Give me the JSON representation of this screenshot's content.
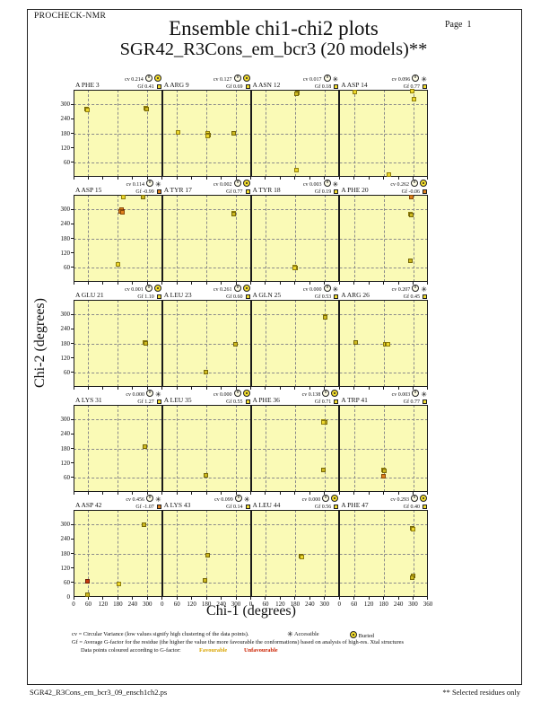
{
  "page": {
    "app": "PROCHECK-NMR",
    "page_label": "Page  1",
    "title": "Ensemble chi1-chi2 plots",
    "subtitle": "SGR42_R3Cons_em_bcr3 (20 models)**",
    "footer_left": "SGR42_R3Cons_em_bcr3_09_ensch1ch2.ps",
    "footer_right": "** Selected residues only"
  },
  "axes": {
    "xlabel": "Chi-1 (degrees)",
    "ylabel": "Chi-2 (degrees)",
    "x_ticks": [
      0,
      60,
      120,
      180,
      240,
      300
    ],
    "x_end_tick": 360,
    "y_ticks": [
      300,
      240,
      180,
      120,
      60
    ],
    "y_zero": "0"
  },
  "icons": {
    "accessible_glyph": "✳"
  },
  "labels": {
    "cv_prefix": "cv",
    "gf_prefix": "Gf"
  },
  "legend": {
    "cv_line": "cv = Circular Variance (low values signify high clustering of the data points).",
    "accessible_label": "Accessible",
    "buried_label": "Buried",
    "gf_line": "Gf = Average G-factor for the residue (the higher the value the more favourable the conformations)  based on analysis of high-res. Xtal structures",
    "colour_line": "Data points coloured according to G-factor:",
    "favourable_label": "Favourable",
    "unfavourable_label": "Unfavourable"
  },
  "colors": {
    "plot_bg": "#FAFAB6",
    "frame": "#1A1A1A",
    "grid": "#8A8A8A",
    "point_yellow": "#EDD72B",
    "point_yellow_border": "#8F7E0C",
    "point_dark": "#CDB91F",
    "point_dark_border": "#776808",
    "point_orange": "#E0801C",
    "point_orange_border": "#8A4A08",
    "point_red": "#C63A10",
    "point_red_border": "#701D05",
    "favourable_swatch": "#F2DC2E",
    "unfavourable_swatch": "#E0801C",
    "favourable_text": "#D9A400",
    "unfavourable_text": "#CC2200"
  },
  "chart_data": {
    "type": "scatter",
    "grid": true,
    "x_range": [
      0,
      360
    ],
    "y_range": [
      0,
      360
    ],
    "gridline_degrees": [
      60,
      180,
      300
    ],
    "models_per_residue": 20,
    "residues": [
      {
        "name": "A PHE 3",
        "cv": "0.214",
        "gf": "0.41",
        "access": "buried",
        "gf_class": "fav",
        "points": [
          [
            54,
            279,
            "d"
          ],
          [
            57,
            276,
            "y"
          ],
          [
            293,
            284,
            "y"
          ],
          [
            296,
            281,
            "d"
          ]
        ]
      },
      {
        "name": "A ARG 9",
        "cv": "0.127",
        "gf": "0.69",
        "access": "buried",
        "gf_class": "fav",
        "points": [
          [
            66,
            185,
            "y"
          ],
          [
            184,
            179,
            "y"
          ],
          [
            188,
            174,
            "d"
          ],
          [
            186,
            169,
            "y"
          ],
          [
            290,
            179,
            "d"
          ]
        ]
      },
      {
        "name": "A ASN 12",
        "cv": "0.017",
        "gf": "0.18",
        "access": "accessible",
        "gf_class": "fav",
        "points": [
          [
            189,
            347,
            "y"
          ],
          [
            187,
            342,
            "d"
          ],
          [
            186,
            26,
            "y"
          ]
        ]
      },
      {
        "name": "A ASP 14",
        "cv": "0.096",
        "gf": "0.77",
        "access": "accessible",
        "gf_class": "fav",
        "points": [
          [
            62,
            351,
            "y"
          ],
          [
            297,
            354,
            "y"
          ],
          [
            305,
            320,
            "y"
          ],
          [
            203,
            8,
            "y"
          ]
        ]
      },
      {
        "name": "A ASP 15",
        "cv": "0.114",
        "gf": "-0.99",
        "access": "accessible",
        "gf_class": "unfav",
        "points": [
          [
            202,
            352,
            "y"
          ],
          [
            281,
            349,
            "d"
          ],
          [
            195,
            297,
            "o"
          ],
          [
            199,
            293,
            "r"
          ],
          [
            192,
            291,
            "o"
          ],
          [
            198,
            288,
            "o"
          ],
          [
            181,
            71,
            "y"
          ]
        ]
      },
      {
        "name": "A TYR 17",
        "cv": "0.002",
        "gf": "0.77",
        "access": "buried",
        "gf_class": "fav",
        "points": [
          [
            289,
            283,
            "y"
          ],
          [
            292,
            279,
            "d"
          ]
        ]
      },
      {
        "name": "A TYR 18",
        "cv": "0.003",
        "gf": "0.19",
        "access": "accessible",
        "gf_class": "fav",
        "points": [
          [
            179,
            63,
            "y"
          ],
          [
            182,
            59,
            "d"
          ],
          [
            178,
            56,
            "y"
          ]
        ]
      },
      {
        "name": "A PHE 20",
        "cv": "0.262",
        "gf": "-0.06",
        "access": "buried",
        "gf_class": "unfav",
        "points": [
          [
            293,
            352,
            "o"
          ],
          [
            289,
            281,
            "y"
          ],
          [
            291,
            276,
            "d"
          ],
          [
            289,
            89,
            "d"
          ]
        ]
      },
      {
        "name": "A GLU 21",
        "cv": "0.001",
        "gf": "1.10",
        "access": "buried",
        "gf_class": "fav",
        "points": [
          [
            290,
            184,
            "y"
          ],
          [
            293,
            180,
            "d"
          ]
        ]
      },
      {
        "name": "A LEU 23",
        "cv": "0.261",
        "gf": "0.60",
        "access": "buried",
        "gf_class": "fav",
        "points": [
          [
            179,
            61,
            "d"
          ],
          [
            298,
            177,
            "d"
          ]
        ]
      },
      {
        "name": "A GLN 25",
        "cv": "0.000",
        "gf": "0.53",
        "access": "accessible",
        "gf_class": "fav",
        "points": [
          [
            302,
            293,
            "y"
          ],
          [
            304,
            289,
            "d"
          ]
        ]
      },
      {
        "name": "A ARG 26",
        "cv": "0.207",
        "gf": "0.45",
        "access": "accessible",
        "gf_class": "fav",
        "points": [
          [
            67,
            182,
            "d"
          ],
          [
            187,
            177,
            "y"
          ],
          [
            193,
            176,
            "d"
          ],
          [
            198,
            177,
            "y"
          ]
        ]
      },
      {
        "name": "A LYS 31",
        "cv": "0.000",
        "gf": "1.27",
        "access": "accessible",
        "gf_class": "fav",
        "points": [
          [
            290,
            186,
            "d"
          ]
        ]
      },
      {
        "name": "A LEU 35",
        "cv": "0.000",
        "gf": "0.55",
        "access": "buried",
        "gf_class": "fav",
        "points": [
          [
            176,
            69,
            "d"
          ]
        ]
      },
      {
        "name": "A PHE 36",
        "cv": "0.138",
        "gf": "0.71",
        "access": "buried",
        "gf_class": "fav",
        "points": [
          [
            297,
            292,
            "y"
          ],
          [
            301,
            287,
            "d"
          ],
          [
            295,
            286,
            "y"
          ],
          [
            294,
            90,
            "d"
          ]
        ]
      },
      {
        "name": "A TRP 41",
        "cv": "0.003",
        "gf": "0.77",
        "access": "accessible",
        "gf_class": "fav",
        "points": [
          [
            180,
            91,
            "y"
          ],
          [
            182,
            86,
            "d"
          ],
          [
            181,
            65,
            "o"
          ]
        ]
      },
      {
        "name": "A ASP 42",
        "cv": "0.456",
        "gf": "-1.07",
        "access": "accessible",
        "gf_class": "unfav",
        "points": [
          [
            286,
            297,
            "d"
          ],
          [
            55,
            66,
            "r"
          ],
          [
            184,
            54,
            "y"
          ],
          [
            55,
            10,
            "d"
          ]
        ]
      },
      {
        "name": "A LYS 43",
        "cv": "0.099",
        "gf": "0.14",
        "access": "accessible",
        "gf_class": "fav",
        "points": [
          [
            185,
            174,
            "d"
          ],
          [
            175,
            68,
            "d"
          ]
        ]
      },
      {
        "name": "A LEU 44",
        "cv": "0.000",
        "gf": "0.56",
        "access": "buried",
        "gf_class": "fav",
        "points": [
          [
            204,
            170,
            "d"
          ],
          [
            207,
            166,
            "y"
          ]
        ]
      },
      {
        "name": "A PHE 47",
        "cv": "0.293",
        "gf": "0.40",
        "access": "buried",
        "gf_class": "fav",
        "points": [
          [
            297,
            284,
            "d"
          ],
          [
            299,
            279,
            "y"
          ],
          [
            299,
            88,
            "d"
          ],
          [
            298,
            81,
            "d"
          ]
        ]
      }
    ]
  }
}
